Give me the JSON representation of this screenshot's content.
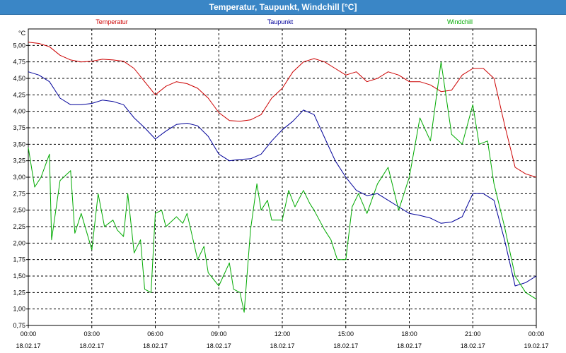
{
  "window": {
    "title": "Temperatur, Taupunkt, Windchill [°C]"
  },
  "chart_data": {
    "type": "line",
    "title": "Temperatur, Taupunkt, Windchill [°C]",
    "ylabel": "°C",
    "ylim": [
      0.75,
      5.25
    ],
    "xlim": [
      0,
      24
    ],
    "grid": true,
    "legend_position": "top",
    "y_ticks": [
      {
        "value": 5.0,
        "label": "5,00"
      },
      {
        "value": 4.75,
        "label": "4,75"
      },
      {
        "value": 4.5,
        "label": "4,50"
      },
      {
        "value": 4.25,
        "label": "4,25"
      },
      {
        "value": 4.0,
        "label": "4,00"
      },
      {
        "value": 3.75,
        "label": "3,75"
      },
      {
        "value": 3.5,
        "label": "3,50"
      },
      {
        "value": 3.25,
        "label": "3,25"
      },
      {
        "value": 3.0,
        "label": "3,00"
      },
      {
        "value": 2.75,
        "label": "2,75"
      },
      {
        "value": 2.5,
        "label": "2,50"
      },
      {
        "value": 2.25,
        "label": "2,25"
      },
      {
        "value": 2.0,
        "label": "2,00"
      },
      {
        "value": 1.75,
        "label": "1,75"
      },
      {
        "value": 1.5,
        "label": "1,50"
      },
      {
        "value": 1.25,
        "label": "1,25"
      },
      {
        "value": 1.0,
        "label": "1,00"
      },
      {
        "value": 0.75,
        "label": "0,75"
      }
    ],
    "x_ticks": [
      {
        "value": 0,
        "time": "00:00",
        "date": "18.02.17"
      },
      {
        "value": 3,
        "time": "03:00",
        "date": "18.02.17"
      },
      {
        "value": 6,
        "time": "06:00",
        "date": "18.02.17"
      },
      {
        "value": 9,
        "time": "09:00",
        "date": "18.02.17"
      },
      {
        "value": 12,
        "time": "12:00",
        "date": "18.02.17"
      },
      {
        "value": 15,
        "time": "15:00",
        "date": "18.02.17"
      },
      {
        "value": 18,
        "time": "18:00",
        "date": "18.02.17"
      },
      {
        "value": 21,
        "time": "21:00",
        "date": "18.02.17"
      },
      {
        "value": 24,
        "time": "00:00",
        "date": "19.02.17"
      }
    ],
    "series": [
      {
        "name": "Temperatur",
        "color": "#cc0000",
        "points": [
          [
            0,
            5.05
          ],
          [
            0.5,
            5.03
          ],
          [
            1,
            4.98
          ],
          [
            1.5,
            4.85
          ],
          [
            2,
            4.78
          ],
          [
            2.5,
            4.75
          ],
          [
            3,
            4.76
          ],
          [
            3.5,
            4.79
          ],
          [
            4,
            4.78
          ],
          [
            4.5,
            4.76
          ],
          [
            5,
            4.65
          ],
          [
            5.5,
            4.45
          ],
          [
            6,
            4.25
          ],
          [
            6.5,
            4.38
          ],
          [
            7,
            4.45
          ],
          [
            7.5,
            4.42
          ],
          [
            8,
            4.35
          ],
          [
            8.5,
            4.2
          ],
          [
            9,
            3.98
          ],
          [
            9.5,
            3.86
          ],
          [
            10,
            3.85
          ],
          [
            10.5,
            3.87
          ],
          [
            11,
            3.95
          ],
          [
            11.5,
            4.2
          ],
          [
            12,
            4.35
          ],
          [
            12.5,
            4.6
          ],
          [
            13,
            4.75
          ],
          [
            13.5,
            4.8
          ],
          [
            14,
            4.75
          ],
          [
            14.5,
            4.65
          ],
          [
            15,
            4.55
          ],
          [
            15.5,
            4.6
          ],
          [
            16,
            4.45
          ],
          [
            16.5,
            4.5
          ],
          [
            17,
            4.6
          ],
          [
            17.5,
            4.55
          ],
          [
            18,
            4.45
          ],
          [
            18.5,
            4.45
          ],
          [
            19,
            4.4
          ],
          [
            19.5,
            4.3
          ],
          [
            20,
            4.32
          ],
          [
            20.5,
            4.55
          ],
          [
            21,
            4.65
          ],
          [
            21.5,
            4.65
          ],
          [
            22,
            4.5
          ],
          [
            22.5,
            3.8
          ],
          [
            23,
            3.15
          ],
          [
            23.5,
            3.05
          ],
          [
            24,
            3.0
          ]
        ]
      },
      {
        "name": "Taupunkt",
        "color": "#000099",
        "points": [
          [
            0,
            4.6
          ],
          [
            0.5,
            4.55
          ],
          [
            1,
            4.45
          ],
          [
            1.5,
            4.2
          ],
          [
            2,
            4.1
          ],
          [
            2.5,
            4.1
          ],
          [
            3,
            4.12
          ],
          [
            3.5,
            4.17
          ],
          [
            4,
            4.15
          ],
          [
            4.5,
            4.1
          ],
          [
            5,
            3.9
          ],
          [
            5.5,
            3.75
          ],
          [
            6,
            3.58
          ],
          [
            6.5,
            3.7
          ],
          [
            7,
            3.8
          ],
          [
            7.5,
            3.82
          ],
          [
            8,
            3.78
          ],
          [
            8.5,
            3.62
          ],
          [
            9,
            3.35
          ],
          [
            9.5,
            3.25
          ],
          [
            10,
            3.27
          ],
          [
            10.5,
            3.28
          ],
          [
            11,
            3.35
          ],
          [
            11.5,
            3.55
          ],
          [
            12,
            3.72
          ],
          [
            12.5,
            3.85
          ],
          [
            13,
            4.02
          ],
          [
            13.5,
            3.95
          ],
          [
            14,
            3.6
          ],
          [
            14.5,
            3.25
          ],
          [
            15,
            3.0
          ],
          [
            15.5,
            2.8
          ],
          [
            16,
            2.72
          ],
          [
            16.5,
            2.75
          ],
          [
            17,
            2.65
          ],
          [
            17.5,
            2.55
          ],
          [
            18,
            2.45
          ],
          [
            18.5,
            2.42
          ],
          [
            19,
            2.38
          ],
          [
            19.5,
            2.3
          ],
          [
            20,
            2.32
          ],
          [
            20.5,
            2.4
          ],
          [
            21,
            2.75
          ],
          [
            21.5,
            2.75
          ],
          [
            22,
            2.65
          ],
          [
            22.5,
            2.05
          ],
          [
            23,
            1.35
          ],
          [
            23.5,
            1.4
          ],
          [
            24,
            1.5
          ]
        ]
      },
      {
        "name": "Windchill",
        "color": "#00aa00",
        "points": [
          [
            0,
            3.45
          ],
          [
            0.3,
            2.85
          ],
          [
            0.6,
            3.0
          ],
          [
            1,
            3.35
          ],
          [
            1.1,
            2.05
          ],
          [
            1.5,
            2.95
          ],
          [
            2,
            3.1
          ],
          [
            2.2,
            2.15
          ],
          [
            2.5,
            2.45
          ],
          [
            3,
            1.9
          ],
          [
            3.3,
            2.75
          ],
          [
            3.6,
            2.25
          ],
          [
            4,
            2.35
          ],
          [
            4.2,
            2.2
          ],
          [
            4.5,
            2.1
          ],
          [
            4.7,
            2.75
          ],
          [
            5,
            1.85
          ],
          [
            5.3,
            2.05
          ],
          [
            5.5,
            1.3
          ],
          [
            5.8,
            1.25
          ],
          [
            6,
            2.45
          ],
          [
            6.3,
            2.5
          ],
          [
            6.5,
            2.25
          ],
          [
            7,
            2.4
          ],
          [
            7.3,
            2.3
          ],
          [
            7.5,
            2.45
          ],
          [
            8,
            1.75
          ],
          [
            8.3,
            1.95
          ],
          [
            8.5,
            1.55
          ],
          [
            9,
            1.35
          ],
          [
            9.5,
            1.7
          ],
          [
            9.7,
            1.3
          ],
          [
            10,
            1.25
          ],
          [
            10.2,
            0.95
          ],
          [
            10.5,
            2.2
          ],
          [
            10.8,
            2.9
          ],
          [
            11,
            2.5
          ],
          [
            11.3,
            2.65
          ],
          [
            11.5,
            2.35
          ],
          [
            12,
            2.35
          ],
          [
            12.3,
            2.8
          ],
          [
            12.6,
            2.55
          ],
          [
            13,
            2.8
          ],
          [
            13.3,
            2.6
          ],
          [
            13.5,
            2.5
          ],
          [
            14,
            2.2
          ],
          [
            14.3,
            2.05
          ],
          [
            14.6,
            1.75
          ],
          [
            15,
            1.75
          ],
          [
            15.3,
            2.55
          ],
          [
            15.6,
            2.75
          ],
          [
            16,
            2.45
          ],
          [
            16.5,
            2.9
          ],
          [
            17,
            3.15
          ],
          [
            17.5,
            2.5
          ],
          [
            18,
            3.0
          ],
          [
            18.5,
            3.9
          ],
          [
            19,
            3.55
          ],
          [
            19.5,
            4.75
          ],
          [
            20,
            3.65
          ],
          [
            20.5,
            3.5
          ],
          [
            21,
            4.1
          ],
          [
            21.3,
            3.5
          ],
          [
            21.7,
            3.55
          ],
          [
            22,
            2.9
          ],
          [
            22.5,
            2.25
          ],
          [
            23,
            1.5
          ],
          [
            23.5,
            1.25
          ],
          [
            24,
            1.15
          ]
        ]
      }
    ]
  }
}
